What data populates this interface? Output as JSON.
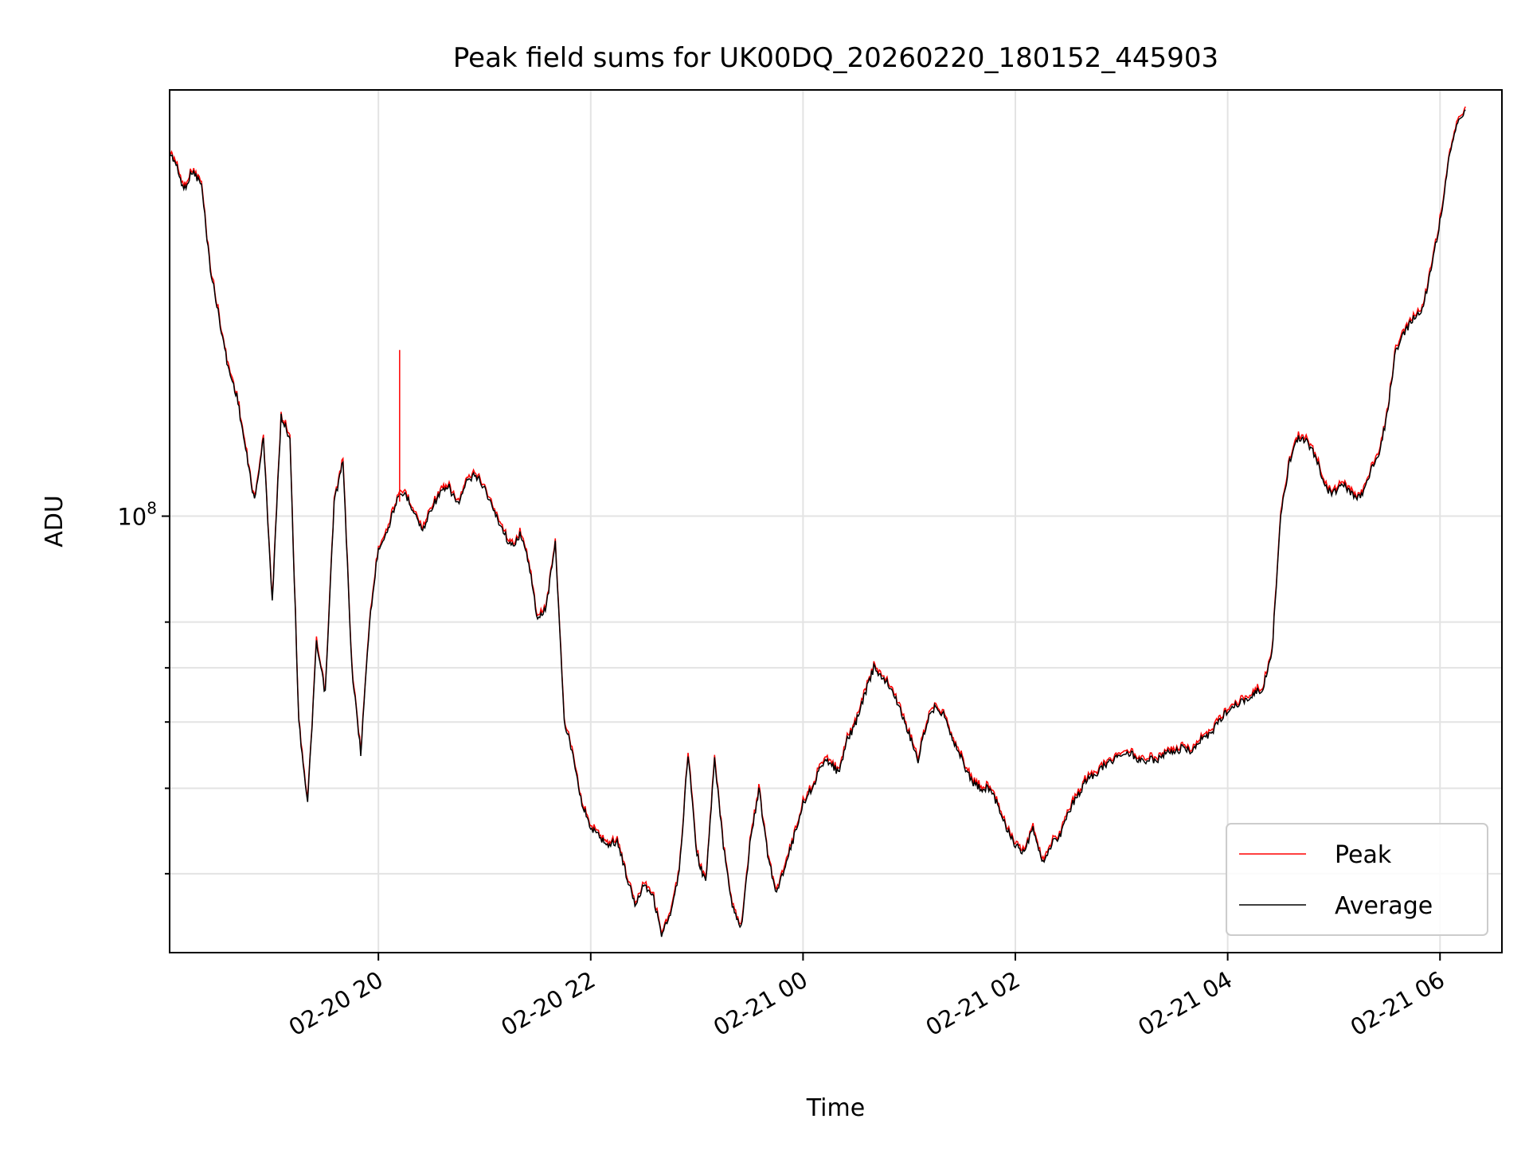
{
  "chart_data": {
    "type": "line",
    "title": "Peak field sums for UK00DQ_20260220_180152_445903",
    "xlabel": "Time",
    "ylabel": "ADU",
    "yscale": "log",
    "xlim": [
      "2026-02-20 18:02",
      "2026-02-21 06:35"
    ],
    "ylim": [
      23000000,
      420000000
    ],
    "grid": true,
    "legend_position": "lower-right",
    "x_ticks": [
      {
        "time": "2026-02-20 20:00",
        "label": "02-20 20"
      },
      {
        "time": "2026-02-20 22:00",
        "label": "02-20 22"
      },
      {
        "time": "2026-02-21 00:00",
        "label": "02-21 00"
      },
      {
        "time": "2026-02-21 02:00",
        "label": "02-21 02"
      },
      {
        "time": "2026-02-21 04:00",
        "label": "02-21 04"
      },
      {
        "time": "2026-02-21 06:00",
        "label": "02-21 06"
      }
    ],
    "y_major_tick": {
      "value": 100000000,
      "base": "10",
      "exp": "8"
    },
    "y_minor_ticks": [
      30000000,
      40000000,
      50000000,
      60000000,
      70000000
    ],
    "series": [
      {
        "name": "Peak",
        "color": "#ff0000"
      },
      {
        "name": "Average",
        "color": "#000000"
      }
    ],
    "x": [
      "2026-02-20 18:02",
      "2026-02-20 18:05",
      "2026-02-20 18:10",
      "2026-02-20 18:15",
      "2026-02-20 18:20",
      "2026-02-20 18:25",
      "2026-02-20 18:30",
      "2026-02-20 18:35",
      "2026-02-20 18:40",
      "2026-02-20 18:45",
      "2026-02-20 18:50",
      "2026-02-20 18:55",
      "2026-02-20 19:00",
      "2026-02-20 19:05",
      "2026-02-20 19:10",
      "2026-02-20 19:15",
      "2026-02-20 19:20",
      "2026-02-20 19:25",
      "2026-02-20 19:30",
      "2026-02-20 19:35",
      "2026-02-20 19:40",
      "2026-02-20 19:45",
      "2026-02-20 19:50",
      "2026-02-20 19:55",
      "2026-02-20 20:00",
      "2026-02-20 20:05",
      "2026-02-20 20:10",
      "2026-02-20 20:15",
      "2026-02-20 20:20",
      "2026-02-20 20:25",
      "2026-02-20 20:30",
      "2026-02-20 20:35",
      "2026-02-20 20:40",
      "2026-02-20 20:45",
      "2026-02-20 20:50",
      "2026-02-20 20:55",
      "2026-02-20 21:00",
      "2026-02-20 21:05",
      "2026-02-20 21:10",
      "2026-02-20 21:15",
      "2026-02-20 21:20",
      "2026-02-20 21:25",
      "2026-02-20 21:30",
      "2026-02-20 21:35",
      "2026-02-20 21:40",
      "2026-02-20 21:45",
      "2026-02-20 21:50",
      "2026-02-20 21:55",
      "2026-02-20 22:00",
      "2026-02-20 22:05",
      "2026-02-20 22:10",
      "2026-02-20 22:15",
      "2026-02-20 22:20",
      "2026-02-20 22:25",
      "2026-02-20 22:30",
      "2026-02-20 22:35",
      "2026-02-20 22:40",
      "2026-02-20 22:45",
      "2026-02-20 22:50",
      "2026-02-20 22:55",
      "2026-02-20 23:00",
      "2026-02-20 23:05",
      "2026-02-20 23:10",
      "2026-02-20 23:15",
      "2026-02-20 23:20",
      "2026-02-20 23:25",
      "2026-02-20 23:30",
      "2026-02-20 23:35",
      "2026-02-20 23:40",
      "2026-02-20 23:45",
      "2026-02-20 23:50",
      "2026-02-20 23:55",
      "2026-02-21 00:00",
      "2026-02-21 00:05",
      "2026-02-21 00:10",
      "2026-02-21 00:15",
      "2026-02-21 00:20",
      "2026-02-21 00:25",
      "2026-02-21 00:30",
      "2026-02-21 00:35",
      "2026-02-21 00:40",
      "2026-02-21 00:45",
      "2026-02-21 00:50",
      "2026-02-21 00:55",
      "2026-02-21 01:00",
      "2026-02-21 01:05",
      "2026-02-21 01:10",
      "2026-02-21 01:15",
      "2026-02-21 01:20",
      "2026-02-21 01:25",
      "2026-02-21 01:30",
      "2026-02-21 01:35",
      "2026-02-21 01:40",
      "2026-02-21 01:45",
      "2026-02-21 01:50",
      "2026-02-21 01:55",
      "2026-02-21 02:00",
      "2026-02-21 02:05",
      "2026-02-21 02:10",
      "2026-02-21 02:15",
      "2026-02-21 02:20",
      "2026-02-21 02:25",
      "2026-02-21 02:30",
      "2026-02-21 02:35",
      "2026-02-21 02:40",
      "2026-02-21 02:45",
      "2026-02-21 02:50",
      "2026-02-21 02:55",
      "2026-02-21 03:00",
      "2026-02-21 03:05",
      "2026-02-21 03:10",
      "2026-02-21 03:15",
      "2026-02-21 03:20",
      "2026-02-21 03:25",
      "2026-02-21 03:30",
      "2026-02-21 03:35",
      "2026-02-21 03:40",
      "2026-02-21 03:45",
      "2026-02-21 03:50",
      "2026-02-21 03:55",
      "2026-02-21 04:00",
      "2026-02-21 04:05",
      "2026-02-21 04:10",
      "2026-02-21 04:15",
      "2026-02-21 04:20",
      "2026-02-21 04:25",
      "2026-02-21 04:30",
      "2026-02-21 04:35",
      "2026-02-21 04:40",
      "2026-02-21 04:45",
      "2026-02-21 04:50",
      "2026-02-21 04:55",
      "2026-02-21 05:00",
      "2026-02-21 05:05",
      "2026-02-21 05:10",
      "2026-02-21 05:15",
      "2026-02-21 05:20",
      "2026-02-21 05:25",
      "2026-02-21 05:30",
      "2026-02-21 05:35",
      "2026-02-21 05:40",
      "2026-02-21 05:45",
      "2026-02-21 05:50",
      "2026-02-21 05:55",
      "2026-02-21 06:00",
      "2026-02-21 06:05",
      "2026-02-21 06:10",
      "2026-02-21 06:15",
      "2026-02-21 06:20",
      "2026-02-21 06:25",
      "2026-02-21 06:30",
      "2026-02-21 06:35"
    ],
    "average": [
      340000000,
      330000000,
      300000000,
      320000000,
      305000000,
      230000000,
      195000000,
      165000000,
      150000000,
      125000000,
      105000000,
      130000000,
      75000000,
      140000000,
      130000000,
      50000000,
      38000000,
      65000000,
      55000000,
      105000000,
      120000000,
      60000000,
      45000000,
      70000000,
      90000000,
      95000000,
      105000000,
      108000000,
      102000000,
      95000000,
      103000000,
      108000000,
      110000000,
      104000000,
      112000000,
      115000000,
      110000000,
      102000000,
      96000000,
      90000000,
      94000000,
      86000000,
      70000000,
      74000000,
      92000000,
      50000000,
      45000000,
      38000000,
      35000000,
      34000000,
      33000000,
      33500000,
      30000000,
      27000000,
      29000000,
      28000000,
      24500000,
      26000000,
      30000000,
      45000000,
      32000000,
      29000000,
      44000000,
      33000000,
      27000000,
      25000000,
      33000000,
      40000000,
      32000000,
      28000000,
      31000000,
      34000000,
      38000000,
      40000000,
      43000000,
      44000000,
      42000000,
      47000000,
      50000000,
      55000000,
      60000000,
      58000000,
      56000000,
      52000000,
      48000000,
      44000000,
      50000000,
      53000000,
      51000000,
      47000000,
      44000000,
      41000000,
      40000000,
      40000000,
      38000000,
      35000000,
      33000000,
      32000000,
      35000000,
      31000000,
      33000000,
      34000000,
      37000000,
      39000000,
      41000000,
      42000000,
      43000000,
      44000000,
      45000000,
      45000000,
      44000000,
      44000000,
      44000000,
      45000000,
      45000000,
      46000000,
      45000000,
      47000000,
      48000000,
      50000000,
      52000000,
      53000000,
      54000000,
      55000000,
      56000000,
      63000000,
      100000000,
      120000000,
      130000000,
      128000000,
      122000000,
      110000000,
      108000000,
      112000000,
      108000000,
      106000000,
      115000000,
      122000000,
      140000000,
      175000000,
      185000000,
      195000000,
      200000000,
      230000000,
      270000000,
      330000000,
      380000000,
      390000000
    ],
    "peak_spike": {
      "time": "2026-02-20 20:12",
      "value": 175000000
    }
  }
}
